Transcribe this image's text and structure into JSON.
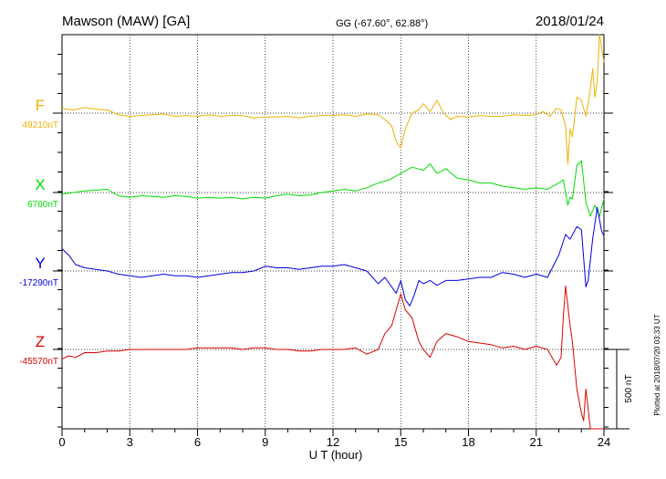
{
  "header": {
    "station": "Mawson (MAW)  [GA]",
    "coords": "GG (-67.60°,  62.88°)",
    "date": "2018/01/24"
  },
  "chart_data": {
    "type": "line",
    "xlabel": "U T (hour)",
    "xlim": [
      0,
      24
    ],
    "xticks": [
      "0",
      "3",
      "6",
      "9",
      "12",
      "15",
      "18",
      "21",
      "24"
    ],
    "grid": true,
    "scale_bar": "500 nT",
    "series": [
      {
        "name": "F",
        "baseline_label": "49210nT",
        "baseline": 49210,
        "color": "#f0b000",
        "x": [
          0,
          0.5,
          1,
          1.5,
          2,
          2.5,
          3,
          3.5,
          4,
          4.5,
          5,
          5.5,
          6,
          6.5,
          7,
          7.5,
          8,
          8.5,
          9,
          9.5,
          10,
          10.5,
          11,
          11.5,
          12,
          12.5,
          13,
          13.5,
          14,
          14.3,
          14.6,
          14.8,
          15,
          15.2,
          15.5,
          15.8,
          16,
          16.3,
          16.6,
          16.9,
          17.2,
          17.5,
          18,
          18.5,
          19,
          19.5,
          20,
          20.5,
          21,
          21.3,
          21.6,
          21.9,
          22.1,
          22.3,
          22.4,
          22.5,
          22.6,
          22.8,
          23,
          23.2,
          23.4,
          23.5,
          23.6,
          23.7,
          23.8,
          24
        ],
        "values": [
          30,
          20,
          35,
          25,
          20,
          -10,
          -20,
          -15,
          -10,
          -5,
          -20,
          -15,
          -20,
          -10,
          -20,
          -15,
          -15,
          -30,
          -25,
          -25,
          -20,
          -30,
          -20,
          -15,
          -15,
          -10,
          -20,
          -5,
          -10,
          -40,
          -80,
          -180,
          -220,
          -100,
          0,
          20,
          60,
          10,
          80,
          0,
          -40,
          -20,
          -25,
          -15,
          -20,
          -20,
          -10,
          -15,
          -10,
          10,
          -20,
          30,
          20,
          -80,
          -320,
          -100,
          -150,
          100,
          80,
          -20,
          150,
          280,
          100,
          200,
          500,
          320
        ]
      },
      {
        "name": "X",
        "baseline_label": "6760nT",
        "baseline": 6760,
        "color": "#00dd00",
        "x": [
          0,
          0.5,
          1,
          1.5,
          2,
          2.5,
          3,
          3.5,
          4,
          4.5,
          5,
          5.5,
          6,
          6.5,
          7,
          7.5,
          8,
          8.5,
          9,
          9.5,
          10,
          10.5,
          11,
          11.5,
          12,
          12.5,
          13,
          13.5,
          14,
          14.5,
          15,
          15.5,
          16,
          16.3,
          16.6,
          17,
          17.5,
          18,
          18.5,
          19,
          19.5,
          20,
          20.5,
          21,
          21.5,
          22,
          22.2,
          22.4,
          22.5,
          22.6,
          22.8,
          23,
          23.2,
          23.4,
          23.6,
          23.8,
          24
        ],
        "values": [
          -10,
          0,
          10,
          15,
          20,
          -20,
          -30,
          -20,
          -25,
          -30,
          -20,
          -25,
          -35,
          -30,
          -35,
          -30,
          -40,
          -30,
          -35,
          -20,
          -10,
          -20,
          -15,
          0,
          10,
          20,
          10,
          30,
          60,
          80,
          120,
          160,
          140,
          180,
          120,
          150,
          90,
          80,
          60,
          60,
          40,
          30,
          20,
          30,
          20,
          60,
          80,
          -80,
          -30,
          -40,
          170,
          200,
          -60,
          -150,
          -80,
          -150,
          -40
        ]
      },
      {
        "name": "Y",
        "baseline_label": "-17290nT",
        "baseline": -17290,
        "color": "#0000dd",
        "x": [
          0,
          0.3,
          0.6,
          1,
          1.5,
          2,
          2.5,
          3,
          3.5,
          4,
          4.5,
          5,
          5.5,
          6,
          6.5,
          7,
          7.5,
          8,
          8.5,
          9,
          9.5,
          10,
          10.5,
          11,
          11.5,
          12,
          12.5,
          13,
          13.5,
          14,
          14.3,
          14.6,
          14.8,
          15,
          15.2,
          15.4,
          15.6,
          15.8,
          16,
          16.3,
          16.6,
          17,
          17.5,
          18,
          18.5,
          19,
          19.5,
          20,
          20.5,
          21,
          21.5,
          22,
          22.3,
          22.5,
          22.8,
          23,
          23.2,
          23.3,
          23.5,
          23.7,
          23.9,
          24
        ],
        "values": [
          140,
          100,
          40,
          20,
          10,
          0,
          -20,
          -30,
          -40,
          -30,
          -20,
          -30,
          -30,
          -40,
          -30,
          -20,
          -10,
          -10,
          0,
          30,
          20,
          20,
          10,
          20,
          30,
          30,
          40,
          20,
          0,
          -80,
          -40,
          -100,
          -140,
          -60,
          -180,
          -220,
          -150,
          -60,
          -80,
          -60,
          -90,
          -60,
          -60,
          -50,
          -40,
          -40,
          -10,
          -20,
          -40,
          -20,
          -40,
          100,
          230,
          200,
          280,
          260,
          -100,
          -60,
          200,
          400,
          250,
          220
        ]
      },
      {
        "name": "Z",
        "baseline_label": "-45570nT",
        "baseline": -45570,
        "color": "#dd0000",
        "x": [
          0,
          0.3,
          0.6,
          1,
          1.5,
          2,
          2.5,
          3,
          3.5,
          4,
          4.5,
          5,
          5.5,
          6,
          6.5,
          7,
          7.5,
          8,
          8.5,
          9,
          9.5,
          10,
          10.5,
          11,
          11.5,
          12,
          12.5,
          13,
          13.5,
          14,
          14.3,
          14.6,
          14.8,
          15,
          15.2,
          15.5,
          15.8,
          16,
          16.3,
          16.6,
          17,
          17.5,
          18,
          18.5,
          19,
          19.5,
          20,
          20.5,
          21,
          21.5,
          21.9,
          22.1,
          22.2,
          22.3,
          22.5,
          22.6,
          22.8,
          23,
          23.1,
          23.2,
          23.4,
          23.6,
          23.8,
          24
        ],
        "values": [
          -60,
          -40,
          -50,
          -20,
          -20,
          -10,
          -10,
          0,
          0,
          0,
          0,
          0,
          0,
          10,
          10,
          10,
          10,
          0,
          10,
          10,
          0,
          0,
          -10,
          -10,
          0,
          0,
          0,
          10,
          -30,
          0,
          100,
          150,
          250,
          350,
          250,
          200,
          50,
          0,
          -50,
          50,
          100,
          80,
          50,
          40,
          30,
          10,
          20,
          0,
          20,
          0,
          -100,
          -50,
          200,
          400,
          150,
          50,
          -250,
          -400,
          -450,
          -250,
          -700,
          -900,
          -950,
          -500
        ]
      }
    ]
  },
  "footer": {
    "plotted": "Plotted at 2018/07/20 03:33 UT"
  }
}
